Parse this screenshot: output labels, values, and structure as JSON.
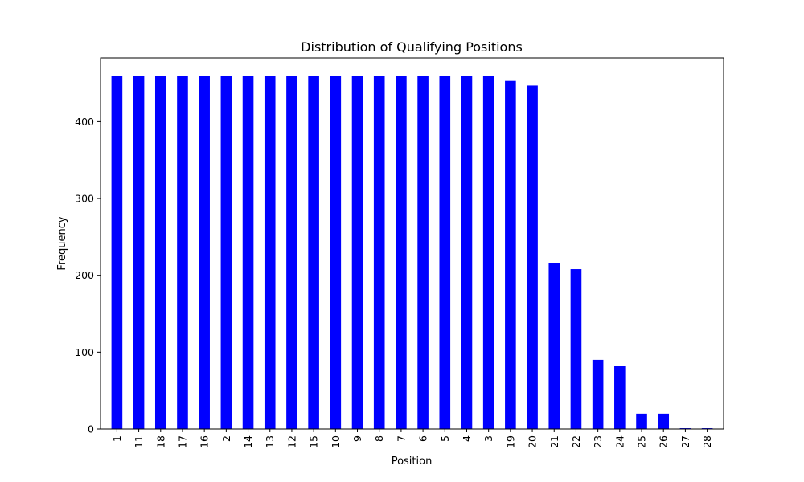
{
  "chart_data": {
    "type": "bar",
    "title": "Distribution of Qualifying Positions",
    "xlabel": "Position",
    "ylabel": "Frequency",
    "categories": [
      "1",
      "11",
      "18",
      "17",
      "16",
      "2",
      "14",
      "13",
      "12",
      "15",
      "10",
      "9",
      "8",
      "7",
      "6",
      "5",
      "4",
      "3",
      "19",
      "20",
      "21",
      "22",
      "23",
      "24",
      "25",
      "26",
      "27",
      "28"
    ],
    "values": [
      460,
      460,
      460,
      460,
      460,
      460,
      460,
      460,
      460,
      460,
      460,
      460,
      460,
      460,
      460,
      460,
      460,
      460,
      453,
      447,
      216,
      208,
      90,
      82,
      20,
      20,
      1,
      1
    ],
    "ylim": [
      0,
      483
    ],
    "yticks": [
      0,
      100,
      200,
      300,
      400
    ],
    "bar_color": "#0000ff",
    "grid": false,
    "legend": "none"
  }
}
